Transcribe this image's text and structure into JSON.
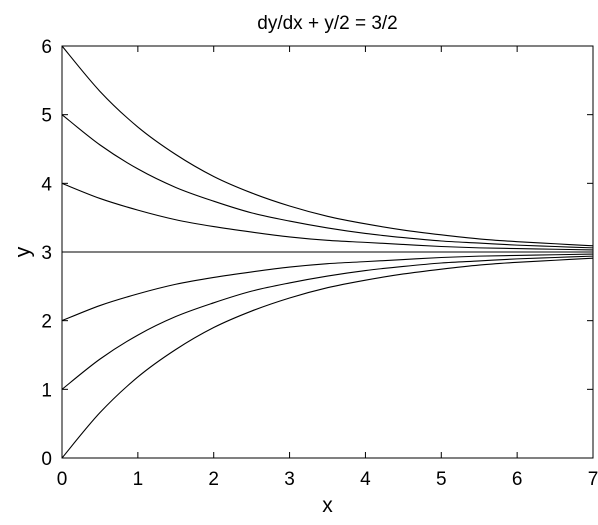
{
  "chart_data": {
    "type": "line",
    "title": "dy/dx + y/2 = 3/2",
    "xlabel": "x",
    "ylabel": "y",
    "xlim": [
      0,
      7
    ],
    "ylim": [
      0,
      6
    ],
    "xticks": [
      "0",
      "1",
      "2",
      "3",
      "4",
      "5",
      "6",
      "7"
    ],
    "yticks": [
      "0",
      "1",
      "2",
      "3",
      "4",
      "5",
      "6"
    ],
    "grid": false,
    "legend": "none",
    "line_color": "#000000",
    "series": [
      {
        "x": [
          0,
          0.5,
          1,
          1.5,
          2,
          2.5,
          3,
          3.5,
          4,
          4.5,
          5,
          5.5,
          6,
          6.5,
          7
        ],
        "values": [
          6,
          5.34,
          4.82,
          4.42,
          4.1,
          3.86,
          3.67,
          3.52,
          3.41,
          3.32,
          3.25,
          3.19,
          3.15,
          3.12,
          3.09
        ]
      },
      {
        "x": [
          0,
          0.5,
          1,
          1.5,
          2,
          2.5,
          3,
          3.5,
          4,
          4.5,
          5,
          5.5,
          6,
          6.5,
          7
        ],
        "values": [
          5,
          4.56,
          4.21,
          3.94,
          3.74,
          3.57,
          3.45,
          3.35,
          3.27,
          3.21,
          3.16,
          3.13,
          3.1,
          3.08,
          3.06
        ]
      },
      {
        "x": [
          0,
          0.5,
          1,
          1.5,
          2,
          2.5,
          3,
          3.5,
          4,
          4.5,
          5,
          5.5,
          6,
          6.5,
          7
        ],
        "values": [
          4,
          3.78,
          3.61,
          3.47,
          3.37,
          3.29,
          3.22,
          3.17,
          3.14,
          3.11,
          3.08,
          3.06,
          3.05,
          3.04,
          3.03
        ]
      },
      {
        "x": [
          0,
          7
        ],
        "values": [
          3,
          3
        ]
      },
      {
        "x": [
          0,
          0.5,
          1,
          1.5,
          2,
          2.5,
          3,
          3.5,
          4,
          4.5,
          5,
          5.5,
          6,
          6.5,
          7
        ],
        "values": [
          2,
          2.22,
          2.39,
          2.53,
          2.63,
          2.71,
          2.78,
          2.83,
          2.86,
          2.89,
          2.92,
          2.94,
          2.95,
          2.96,
          2.97
        ]
      },
      {
        "x": [
          0,
          0.5,
          1,
          1.5,
          2,
          2.5,
          3,
          3.5,
          4,
          4.5,
          5,
          5.5,
          6,
          6.5,
          7
        ],
        "values": [
          1,
          1.44,
          1.79,
          2.06,
          2.26,
          2.43,
          2.55,
          2.65,
          2.73,
          2.79,
          2.84,
          2.87,
          2.9,
          2.92,
          2.94
        ]
      },
      {
        "x": [
          0,
          0.5,
          1,
          1.5,
          2,
          2.5,
          3,
          3.5,
          4,
          4.5,
          5,
          5.5,
          6,
          6.5,
          7
        ],
        "values": [
          0,
          0.66,
          1.18,
          1.58,
          1.9,
          2.14,
          2.33,
          2.48,
          2.59,
          2.68,
          2.75,
          2.81,
          2.85,
          2.88,
          2.91
        ]
      }
    ]
  }
}
